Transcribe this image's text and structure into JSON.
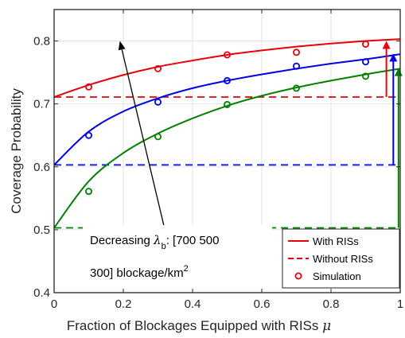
{
  "chart_data": {
    "type": "line",
    "title": "",
    "xlabel": "Fraction of Blockages Equipped with RISs",
    "xlabel_symbol": "μ",
    "ylabel": "Coverage Probability",
    "xlim": [
      0,
      1
    ],
    "ylim": [
      0.4,
      0.85
    ],
    "xticks": [
      0,
      0.2,
      0.4,
      0.6,
      0.8,
      1
    ],
    "xtick_labels": [
      "0",
      "0.2",
      "0.4",
      "0.6",
      "0.8",
      "1"
    ],
    "yticks": [
      0.4,
      0.5,
      0.6,
      0.7,
      0.8
    ],
    "ytick_labels": [
      "0.4",
      "0.5",
      "0.6",
      "0.7",
      "0.8"
    ],
    "grid": true,
    "legend_position": "bottom-right",
    "legend": [
      {
        "label": "With RISs",
        "style": "solid"
      },
      {
        "label": "Without RISs",
        "style": "dashed"
      },
      {
        "label": "Simulation",
        "style": "circle"
      }
    ],
    "series": [
      {
        "color": "#e8000b",
        "with_ris_curve": {
          "x": [
            0,
            0.1,
            0.2,
            0.3,
            0.4,
            0.5,
            0.6,
            0.7,
            0.8,
            0.9,
            1.0
          ],
          "y": [
            0.711,
            0.73,
            0.746,
            0.759,
            0.769,
            0.778,
            0.785,
            0.791,
            0.796,
            0.8,
            0.803
          ]
        },
        "without_ris": 0.711,
        "simulation": {
          "x": [
            0.1,
            0.3,
            0.5,
            0.7,
            0.9
          ],
          "y": [
            0.727,
            0.756,
            0.778,
            0.782,
            0.795
          ]
        }
      },
      {
        "color": "#0000e8",
        "with_ris_curve": {
          "x": [
            0,
            0.1,
            0.2,
            0.3,
            0.4,
            0.5,
            0.6,
            0.7,
            0.8,
            0.9,
            1.0
          ],
          "y": [
            0.603,
            0.656,
            0.688,
            0.709,
            0.725,
            0.737,
            0.747,
            0.756,
            0.764,
            0.771,
            0.779
          ]
        },
        "without_ris": 0.603,
        "simulation": {
          "x": [
            0.1,
            0.3,
            0.5,
            0.7,
            0.9
          ],
          "y": [
            0.65,
            0.703,
            0.737,
            0.76,
            0.767
          ]
        }
      },
      {
        "color": "#008000",
        "with_ris_curve": {
          "x": [
            0,
            0.1,
            0.2,
            0.3,
            0.4,
            0.5,
            0.6,
            0.7,
            0.8,
            0.9,
            1.0
          ],
          "y": [
            0.503,
            0.577,
            0.622,
            0.653,
            0.677,
            0.697,
            0.713,
            0.726,
            0.737,
            0.747,
            0.756
          ]
        },
        "without_ris": 0.503,
        "simulation": {
          "x": [
            0.1,
            0.3,
            0.5,
            0.7,
            0.9
          ],
          "y": [
            0.561,
            0.648,
            0.699,
            0.725,
            0.744
          ]
        }
      }
    ],
    "annotation": {
      "line1_prefix": "Decreasing",
      "lambda": "λ",
      "subscript": "b",
      "line1_suffix": ": [700 500",
      "line2_prefix": "300] blockage/km",
      "superscript": "2",
      "arrow_from": [
        0.32,
        0.5
      ],
      "arrow_to": [
        0.19,
        0.8
      ]
    },
    "gain_arrows": [
      {
        "x": 0.96,
        "from": 0.711,
        "to": 0.8
      },
      {
        "x": 0.98,
        "from": 0.603,
        "to": 0.78
      },
      {
        "x": 0.995,
        "from": 0.503,
        "to": 0.757
      }
    ]
  }
}
